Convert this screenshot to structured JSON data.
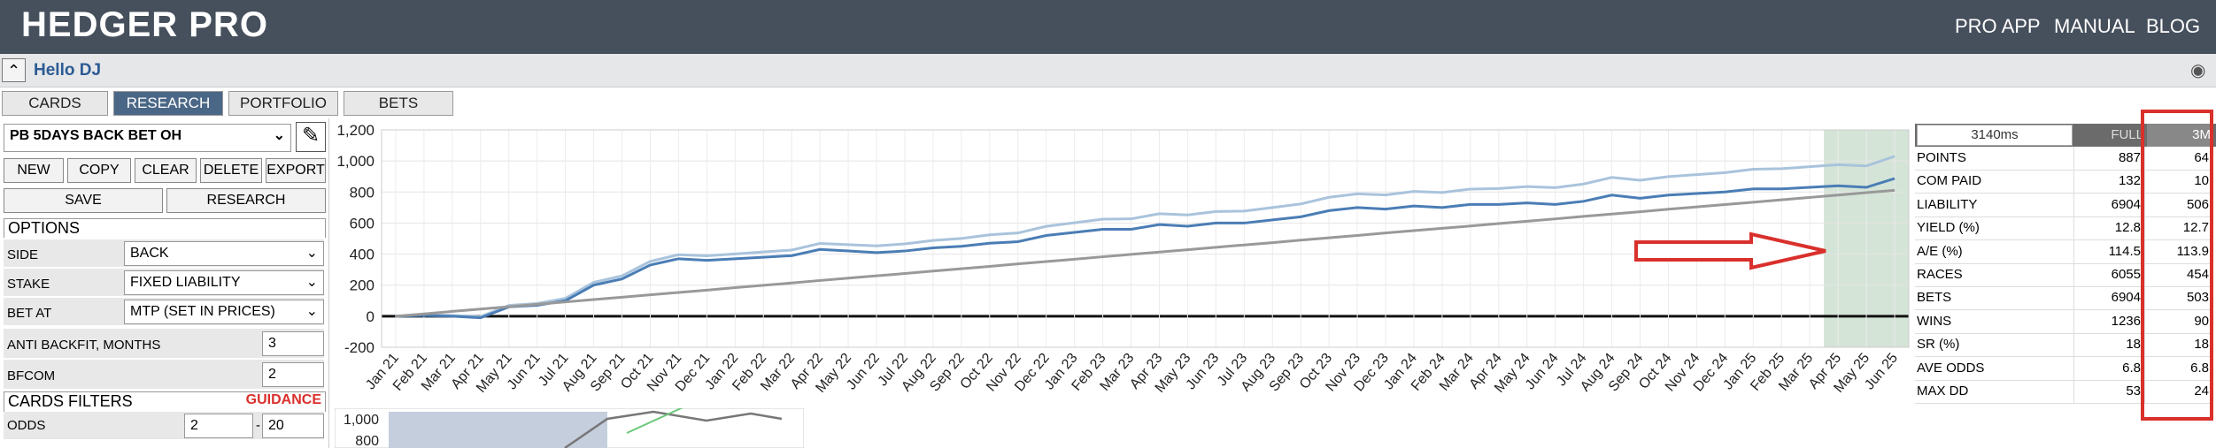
{
  "header": {
    "title": "HEDGER PRO",
    "links": [
      "PRO APP",
      "MANUAL",
      "BLOG"
    ]
  },
  "greeting": "Hello DJ",
  "tabs": [
    "CARDS",
    "RESEARCH",
    "PORTFOLIO",
    "BETS"
  ],
  "active_tab": "RESEARCH",
  "sidebar": {
    "strategy": "PB 5DAYS BACK BET OH",
    "buttons": [
      "NEW",
      "COPY",
      "CLEAR",
      "DELETE",
      "EXPORT"
    ],
    "buttons2": [
      "SAVE",
      "RESEARCH"
    ],
    "options_title": "OPTIONS",
    "options": [
      {
        "label": "SIDE",
        "value": "BACK"
      },
      {
        "label": "STAKE",
        "value": "FIXED LIABILITY"
      },
      {
        "label": "BET AT",
        "value": "MTP (SET IN PRICES)"
      }
    ],
    "inputs": [
      {
        "label": "ANTI BACKFIT, MONTHS",
        "value": "3"
      },
      {
        "label": "BFCOM",
        "value": "2"
      }
    ],
    "filters_title": "CARDS FILTERS",
    "guidance": "GUIDANCE",
    "odds": {
      "label": "ODDS",
      "min": "2",
      "sep": "-",
      "max": "20"
    }
  },
  "chart_data": {
    "type": "line",
    "categories": [
      "Jan 21",
      "Feb 21",
      "Mar 21",
      "Apr 21",
      "May 21",
      "Jun 21",
      "Jul 21",
      "Aug 21",
      "Sep 21",
      "Oct 21",
      "Nov 21",
      "Dec 21",
      "Jan 22",
      "Feb 22",
      "Mar 22",
      "Apr 22",
      "May 22",
      "Jun 22",
      "Jul 22",
      "Aug 22",
      "Sep 22",
      "Oct 22",
      "Nov 22",
      "Dec 22",
      "Jan 23",
      "Feb 23",
      "Mar 23",
      "Apr 23",
      "May 23",
      "Jun 23",
      "Jul 23",
      "Aug 23",
      "Sep 23",
      "Oct 23",
      "Nov 23",
      "Dec 23",
      "Jan 24",
      "Feb 24",
      "Mar 24",
      "Apr 24",
      "May 24",
      "Jun 24",
      "Jul 24",
      "Aug 24",
      "Sep 24",
      "Oct 24",
      "Nov 24",
      "Dec 24",
      "Jan 25",
      "Feb 25",
      "Mar 25",
      "Apr 25",
      "May 25",
      "Jun 25"
    ],
    "series": [
      {
        "color": "#a9c3dc",
        "values": [
          0,
          8,
          5,
          -2,
          70,
          82,
          115,
          218,
          260,
          353,
          396,
          389,
          401,
          414,
          426,
          469,
          461,
          453,
          466,
          488,
          501,
          524,
          536,
          579,
          602,
          625,
          627,
          660,
          652,
          674,
          677,
          700,
          723,
          766,
          788,
          781,
          804,
          797,
          819,
          822,
          835,
          828,
          851,
          894,
          876,
          899,
          912,
          925,
          947,
          950,
          963,
          976,
          968,
          1030
        ]
      },
      {
        "color": "#4a7db5",
        "values": [
          0,
          5,
          0,
          -10,
          60,
          70,
          100,
          200,
          240,
          330,
          370,
          360,
          370,
          380,
          390,
          430,
          420,
          410,
          420,
          440,
          450,
          470,
          480,
          520,
          540,
          560,
          560,
          590,
          580,
          600,
          600,
          620,
          640,
          680,
          700,
          690,
          710,
          700,
          720,
          720,
          730,
          720,
          740,
          780,
          760,
          780,
          790,
          800,
          820,
          820,
          830,
          840,
          830,
          887
        ]
      },
      {
        "color": "#999999",
        "values": [
          0,
          15,
          31,
          46,
          61,
          77,
          92,
          107,
          122,
          138,
          153,
          168,
          184,
          199,
          214,
          230,
          245,
          260,
          275,
          291,
          306,
          321,
          337,
          352,
          367,
          383,
          398,
          413,
          428,
          444,
          459,
          474,
          490,
          505,
          520,
          536,
          551,
          566,
          581,
          597,
          612,
          627,
          643,
          658,
          673,
          689,
          704,
          719,
          734,
          750,
          765,
          780,
          796,
          811
        ]
      }
    ],
    "ylim": [
      -200,
      1200
    ],
    "yticks": [
      -200,
      0,
      200,
      400,
      600,
      800,
      {
        "value": 1000,
        "label": "1,000"
      },
      {
        "value": 1200,
        "label": "1,200"
      }
    ],
    "grid": true,
    "zero_line": true,
    "highlight": {
      "from": "Apr 25",
      "to": "Jun 25",
      "color": "#c9ddcd"
    }
  },
  "mini_chart": {
    "yticks": [
      {
        "value": 1000,
        "label": "1,000"
      },
      800
    ]
  },
  "stats": {
    "timer": "3140ms",
    "columns": [
      "FULL",
      "3M"
    ],
    "rows": [
      [
        "POINTS",
        "887",
        "64"
      ],
      [
        "COM PAID",
        "132",
        "10"
      ],
      [
        "LIABILITY",
        "6904",
        "506"
      ],
      [
        "YIELD (%)",
        "12.8",
        "12.7"
      ],
      [
        "A/E (%)",
        "114.5",
        "113.9"
      ],
      [
        "RACES",
        "6055",
        "454"
      ],
      [
        "BETS",
        "6904",
        "503"
      ],
      [
        "WINS",
        "1236",
        "90"
      ],
      [
        "SR (%)",
        "18",
        "18"
      ],
      [
        "AVE ODDS",
        "6.8",
        "6.8"
      ],
      [
        "MAX DD",
        "53",
        "24"
      ]
    ]
  }
}
